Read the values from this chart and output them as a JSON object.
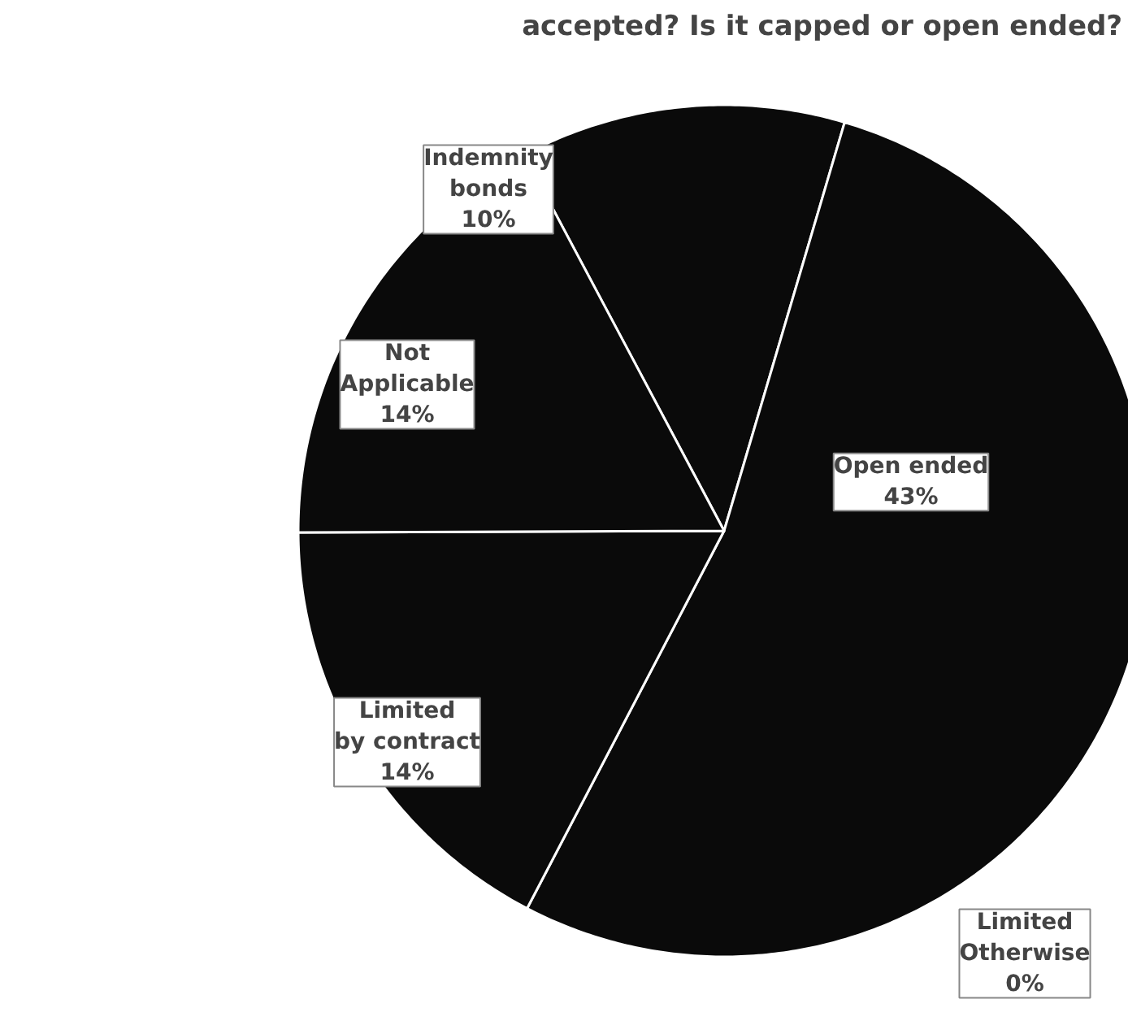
{
  "chart_data": {
    "type": "pie",
    "title": "accepted? Is it capped or open ended?",
    "categories": [
      "Indemnity bonds",
      "Open ended",
      "Limited Otherwise",
      "Limited by contract",
      "Not Applicable"
    ],
    "values": [
      10,
      43,
      0,
      14,
      14
    ],
    "value_labels": [
      "10%",
      "43%",
      "0%",
      "14%",
      "14%"
    ],
    "colors": [
      "#0a0a0a",
      "#0a0a0a",
      "#0a0a0a",
      "#0a0a0a",
      "#0a0a0a"
    ]
  }
}
